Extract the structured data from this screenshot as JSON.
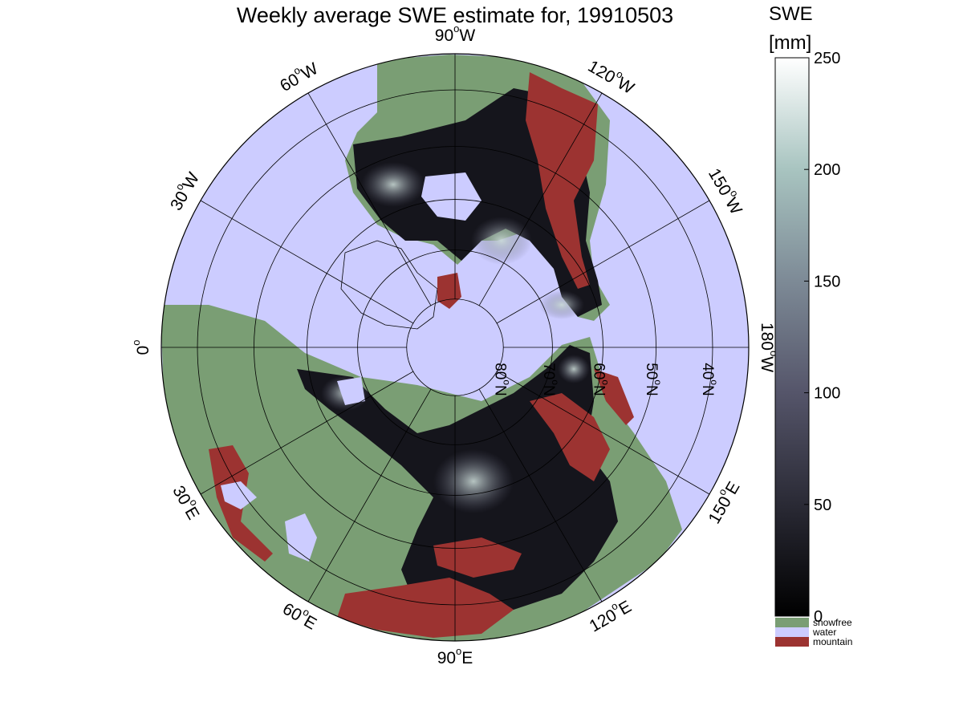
{
  "figure": {
    "title": "Weekly average SWE estimate for, 19910503"
  },
  "map": {
    "projection": "north-polar-stereographic",
    "longitude_labels": [
      {
        "lon": 0,
        "label": "0",
        "sup": "o"
      },
      {
        "lon": 30,
        "label": "30",
        "sup": "o",
        "hemi": "W"
      },
      {
        "lon": 60,
        "label": "60",
        "sup": "o",
        "hemi": "W"
      },
      {
        "lon": 90,
        "label": "90",
        "sup": "o",
        "hemi": "W"
      },
      {
        "lon": 120,
        "label": "120",
        "sup": "o",
        "hemi": "W"
      },
      {
        "lon": 150,
        "label": "150",
        "sup": "o",
        "hemi": "W"
      },
      {
        "lon": 180,
        "label": "180",
        "sup": "o",
        "hemi": "W"
      },
      {
        "lon": 150,
        "label": "150",
        "sup": "o",
        "hemi": "E"
      },
      {
        "lon": 120,
        "label": "120",
        "sup": "o",
        "hemi": "E"
      },
      {
        "lon": 90,
        "label": "90",
        "sup": "o",
        "hemi": "E"
      },
      {
        "lon": 60,
        "label": "60",
        "sup": "o",
        "hemi": "E"
      },
      {
        "lon": 30,
        "label": "30",
        "sup": "o",
        "hemi": "E"
      }
    ],
    "latitude_labels": [
      {
        "lat": 80,
        "label": "80",
        "sup": "o",
        "hemi": "N"
      },
      {
        "lat": 70,
        "label": "70",
        "sup": "o",
        "hemi": "N"
      },
      {
        "lat": 60,
        "label": "60",
        "sup": "o",
        "hemi": "N"
      },
      {
        "lat": 50,
        "label": "50",
        "sup": "o",
        "hemi": "N"
      },
      {
        "lat": 40,
        "label": "40",
        "sup": "o",
        "hemi": "N"
      }
    ],
    "colors": {
      "snowfree": "#7a9e74",
      "water": "#ccccff",
      "mountain": "#9c3331",
      "snow_low": "#0d0d12",
      "snow_mid": "#5a5a72",
      "snow_high": "#c8d8d4"
    }
  },
  "colorbar": {
    "title": "SWE",
    "unit": "[mm]",
    "range": [
      0,
      250
    ],
    "ticks": [
      "0",
      "50",
      "100",
      "150",
      "200",
      "250"
    ],
    "gradient": [
      "#000000",
      "#2a2a35",
      "#55556a",
      "#7d8a96",
      "#a8c4c0",
      "#ffffff"
    ],
    "legend": [
      {
        "label": "snowfree",
        "color": "#7a9e74"
      },
      {
        "label": "water",
        "color": "#ccccff"
      },
      {
        "label": "mountain",
        "color": "#9c3331"
      }
    ]
  }
}
